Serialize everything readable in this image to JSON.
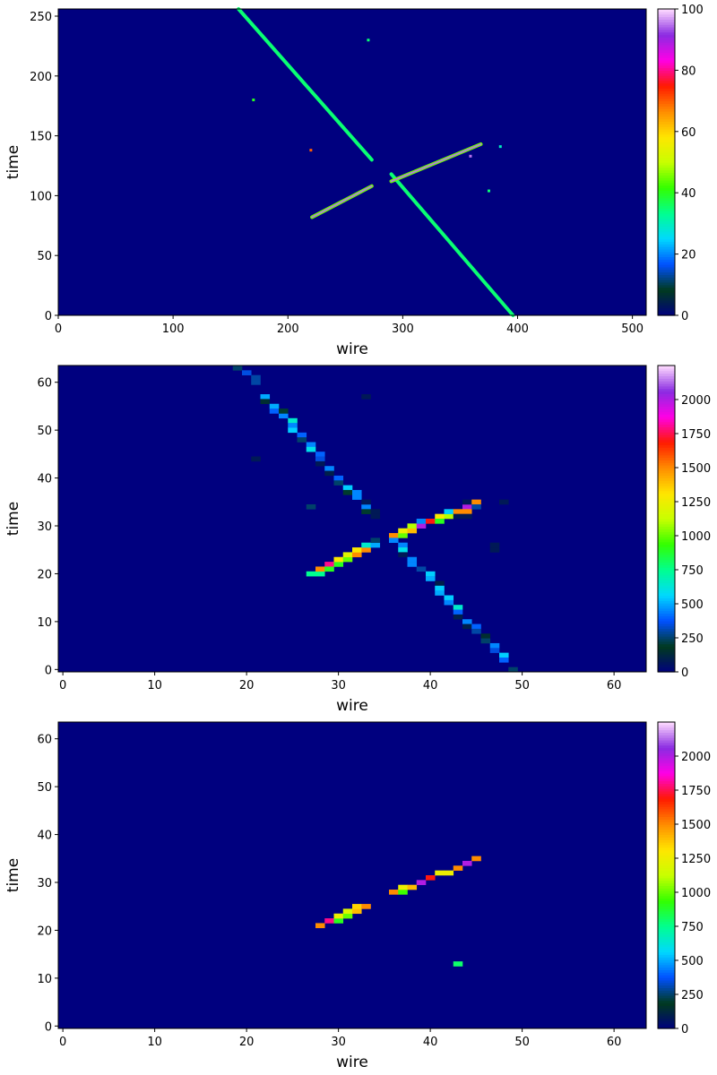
{
  "colors": {
    "background": "#00007f",
    "colormap_name": "gist_ncar",
    "colormap_stops": [
      "#00007f",
      "#003a1e",
      "#0050ff",
      "#00d8ff",
      "#00ff90",
      "#33ff00",
      "#c8ff00",
      "#ffe600",
      "#ff8c00",
      "#ff1a00",
      "#ff00e6",
      "#8a2be2",
      "#ffdcff"
    ]
  },
  "chart_data": [
    {
      "type": "heatmap",
      "xlabel": "wire",
      "ylabel": "time",
      "xlim": [
        0,
        512
      ],
      "ylim": [
        0,
        256
      ],
      "xticks": [
        0,
        100,
        200,
        300,
        400,
        500
      ],
      "yticks": [
        0,
        50,
        100,
        150,
        200,
        250
      ],
      "colorbar": {
        "min": 0,
        "max": 100,
        "ticks": [
          0,
          20,
          40,
          60,
          80,
          100
        ]
      },
      "segments": [
        {
          "from": [
            157,
            256
          ],
          "to": [
            273,
            130
          ],
          "value": 35
        },
        {
          "from": [
            290,
            118
          ],
          "to": [
            396,
            0
          ],
          "value": 35
        },
        {
          "from": [
            221,
            82
          ],
          "to": [
            273,
            108
          ],
          "value": 95
        },
        {
          "from": [
            290,
            112
          ],
          "to": [
            368,
            143
          ],
          "value": 95
        }
      ],
      "points": [
        {
          "x": 270,
          "y": 230,
          "value": 35
        },
        {
          "x": 170,
          "y": 180,
          "value": 40
        },
        {
          "x": 220,
          "y": 138,
          "value": 70
        },
        {
          "x": 385,
          "y": 141,
          "value": 30
        },
        {
          "x": 375,
          "y": 104,
          "value": 35
        },
        {
          "x": 359,
          "y": 133,
          "value": 95
        }
      ]
    },
    {
      "type": "heatmap",
      "xlabel": "wire",
      "ylabel": "time",
      "xlim": [
        -0.5,
        63.5
      ],
      "ylim": [
        -0.5,
        63.5
      ],
      "xticks": [
        0,
        10,
        20,
        30,
        40,
        50,
        60
      ],
      "yticks": [
        0,
        10,
        20,
        30,
        40,
        50,
        60
      ],
      "colorbar": {
        "min": 0,
        "max": 2250,
        "ticks": [
          0,
          250,
          500,
          750,
          1000,
          1250,
          1500,
          1750,
          2000
        ]
      },
      "cells": [
        [
          19,
          63,
          250
        ],
        [
          20,
          62,
          350
        ],
        [
          21,
          60,
          300
        ],
        [
          21,
          61,
          300
        ],
        [
          22,
          57,
          500
        ],
        [
          22,
          56,
          150
        ],
        [
          23,
          55,
          500
        ],
        [
          23,
          54,
          400
        ],
        [
          24,
          53,
          450
        ],
        [
          24,
          54,
          200
        ],
        [
          25,
          52,
          650
        ],
        [
          25,
          51,
          450
        ],
        [
          25,
          50,
          550
        ],
        [
          26,
          49,
          400
        ],
        [
          26,
          48,
          250
        ],
        [
          27,
          47,
          450
        ],
        [
          27,
          46,
          600
        ],
        [
          28,
          45,
          400
        ],
        [
          28,
          44,
          350
        ],
        [
          28,
          43,
          80
        ],
        [
          29,
          42,
          450
        ],
        [
          29,
          41,
          100
        ],
        [
          30,
          40,
          400
        ],
        [
          30,
          39,
          250
        ],
        [
          31,
          38,
          550
        ],
        [
          31,
          37,
          200
        ],
        [
          32,
          36,
          450
        ],
        [
          32,
          37,
          450
        ],
        [
          33,
          34,
          450
        ],
        [
          33,
          35,
          80
        ],
        [
          33,
          33,
          200
        ],
        [
          34,
          32,
          80
        ],
        [
          34,
          33,
          80
        ],
        [
          33,
          57,
          80
        ],
        [
          21,
          44,
          80
        ],
        [
          27,
          34,
          250
        ],
        [
          27,
          20,
          750
        ],
        [
          28,
          20,
          750
        ],
        [
          28,
          21,
          1500
        ],
        [
          29,
          22,
          1800
        ],
        [
          29,
          21,
          900
        ],
        [
          30,
          22,
          900
        ],
        [
          30,
          23,
          1300
        ],
        [
          31,
          23,
          1000
        ],
        [
          31,
          24,
          1200
        ],
        [
          32,
          24,
          1500
        ],
        [
          32,
          25,
          1300
        ],
        [
          33,
          25,
          1500
        ],
        [
          33,
          26,
          650
        ],
        [
          34,
          26,
          500
        ],
        [
          34,
          27,
          250
        ],
        [
          36,
          28,
          1500
        ],
        [
          36,
          27,
          450
        ],
        [
          37,
          28,
          1000
        ],
        [
          37,
          29,
          1250
        ],
        [
          38,
          29,
          1400
        ],
        [
          38,
          30,
          1100
        ],
        [
          39,
          30,
          2000
        ],
        [
          39,
          31,
          450
        ],
        [
          40,
          31,
          1700
        ],
        [
          41,
          32,
          1300
        ],
        [
          41,
          31,
          900
        ],
        [
          42,
          32,
          1100
        ],
        [
          42,
          33,
          550
        ],
        [
          43,
          33,
          1500
        ],
        [
          43,
          32,
          80
        ],
        [
          44,
          34,
          2000
        ],
        [
          44,
          33,
          1500
        ],
        [
          44,
          35,
          80
        ],
        [
          44,
          32,
          80
        ],
        [
          45,
          35,
          1500
        ],
        [
          45,
          34,
          300
        ],
        [
          48,
          35,
          80
        ],
        [
          47,
          26,
          80
        ],
        [
          47,
          25,
          80
        ],
        [
          37,
          26,
          450
        ],
        [
          37,
          25,
          600
        ],
        [
          37,
          24,
          80
        ],
        [
          38,
          23,
          450
        ],
        [
          38,
          22,
          450
        ],
        [
          39,
          21,
          300
        ],
        [
          40,
          20,
          550
        ],
        [
          40,
          19,
          500
        ],
        [
          41,
          18,
          100
        ],
        [
          41,
          17,
          550
        ],
        [
          41,
          16,
          500
        ],
        [
          42,
          15,
          550
        ],
        [
          42,
          14,
          450
        ],
        [
          43,
          13,
          650
        ],
        [
          43,
          12,
          400
        ],
        [
          43,
          11,
          100
        ],
        [
          44,
          10,
          450
        ],
        [
          44,
          9,
          100
        ],
        [
          45,
          9,
          400
        ],
        [
          45,
          8,
          300
        ],
        [
          46,
          7,
          150
        ],
        [
          46,
          6,
          250
        ],
        [
          47,
          5,
          450
        ],
        [
          47,
          4,
          350
        ],
        [
          48,
          3,
          550
        ],
        [
          48,
          2,
          400
        ],
        [
          49,
          0,
          250
        ]
      ]
    },
    {
      "type": "heatmap",
      "xlabel": "wire",
      "ylabel": "time",
      "xlim": [
        -0.5,
        63.5
      ],
      "ylim": [
        -0.5,
        63.5
      ],
      "xticks": [
        0,
        10,
        20,
        30,
        40,
        50,
        60
      ],
      "yticks": [
        0,
        10,
        20,
        30,
        40,
        50,
        60
      ],
      "colorbar": {
        "min": 0,
        "max": 2250,
        "ticks": [
          0,
          250,
          500,
          750,
          1000,
          1250,
          1500,
          1750,
          2000
        ]
      },
      "cells": [
        [
          28,
          21,
          1500
        ],
        [
          29,
          22,
          1800
        ],
        [
          30,
          22,
          900
        ],
        [
          30,
          23,
          1250
        ],
        [
          31,
          23,
          1000
        ],
        [
          31,
          24,
          1200
        ],
        [
          32,
          24,
          1400
        ],
        [
          32,
          25,
          1350
        ],
        [
          33,
          25,
          1500
        ],
        [
          36,
          28,
          1500
        ],
        [
          37,
          28,
          950
        ],
        [
          37,
          29,
          1250
        ],
        [
          38,
          29,
          1400
        ],
        [
          39,
          30,
          2000
        ],
        [
          40,
          31,
          1700
        ],
        [
          41,
          32,
          1250
        ],
        [
          42,
          32,
          1250
        ],
        [
          43,
          33,
          1500
        ],
        [
          44,
          34,
          2000
        ],
        [
          45,
          35,
          1500
        ],
        [
          43,
          13,
          800
        ]
      ]
    }
  ]
}
